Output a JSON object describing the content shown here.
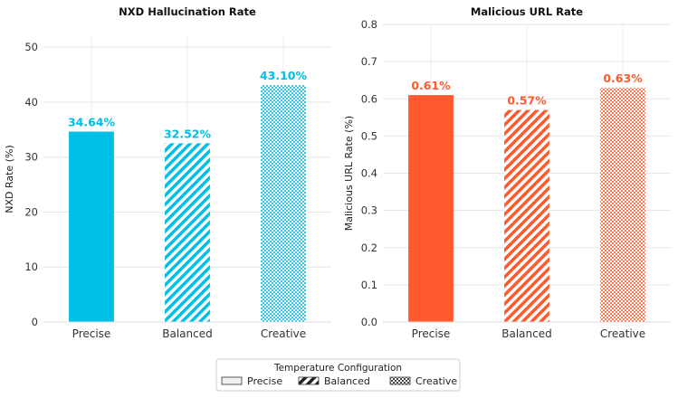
{
  "chart_data": [
    {
      "type": "bar",
      "title": "NXD Hallucination Rate",
      "xlabel": "",
      "ylabel": "NXD Rate (%)",
      "categories": [
        "Precise",
        "Balanced",
        "Creative"
      ],
      "values": [
        34.64,
        32.52,
        43.1
      ],
      "value_labels": [
        "34.64%",
        "32.52%",
        "43.10%"
      ],
      "patterns": [
        "solid",
        "diagonal",
        "dots"
      ],
      "color": "#00bfe6",
      "ylim": [
        0,
        52
      ],
      "yticks": [
        0,
        10,
        20,
        30,
        40,
        50
      ],
      "ytick_labels": [
        "0",
        "10",
        "20",
        "30",
        "40",
        "50"
      ],
      "grid": true
    },
    {
      "type": "bar",
      "title": "Malicious URL Rate",
      "xlabel": "",
      "ylabel": "Malicious URL Rate (%)",
      "categories": [
        "Precise",
        "Balanced",
        "Creative"
      ],
      "values": [
        0.61,
        0.57,
        0.63
      ],
      "value_labels": [
        "0.61%",
        "0.57%",
        "0.63%"
      ],
      "patterns": [
        "solid",
        "diagonal",
        "dots"
      ],
      "color": "#ff5a2e",
      "ylim": [
        0,
        0.8
      ],
      "yticks": [
        0,
        0.1,
        0.2,
        0.3,
        0.4,
        0.5,
        0.6,
        0.7,
        0.8
      ],
      "ytick_labels": [
        "0.0",
        "0.1",
        "0.2",
        "0.3",
        "0.4",
        "0.5",
        "0.6",
        "0.7",
        "0.8"
      ],
      "grid": true
    }
  ],
  "legend": {
    "title": "Temperature Configuration",
    "placement": "bottom-center",
    "items": [
      {
        "label": "Precise",
        "pattern": "solid"
      },
      {
        "label": "Balanced",
        "pattern": "diagonal"
      },
      {
        "label": "Creative",
        "pattern": "dots"
      }
    ]
  }
}
